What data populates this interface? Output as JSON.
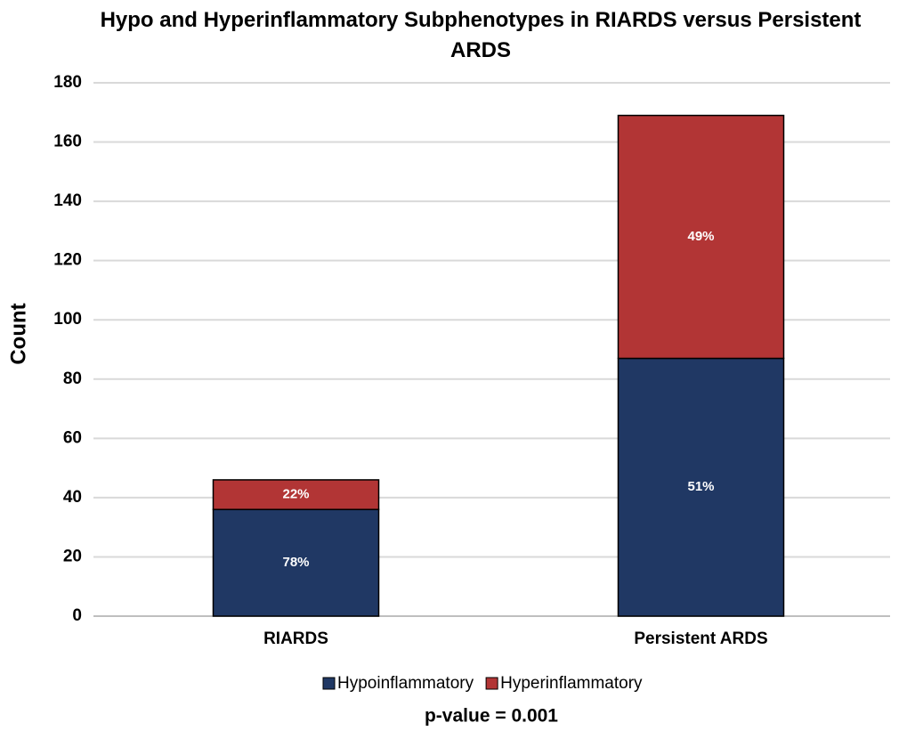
{
  "chart_data": {
    "type": "stacked_bar",
    "title": "Hypo and Hyperinflammatory Subphenotypes in RIARDS versus Persistent ARDS",
    "y_label": "Count",
    "categories": [
      "RIARDS",
      "Persistent ARDS"
    ],
    "series": [
      {
        "name": "Hypoinflammatory",
        "color": "#203864",
        "values": [
          36,
          87
        ],
        "labels": [
          "78%",
          "51%"
        ]
      },
      {
        "name": "Hyperinflammatory",
        "color": "#b23535",
        "values": [
          10,
          82
        ],
        "labels": [
          "22%",
          "49%"
        ]
      }
    ],
    "ylim": [
      0,
      180
    ],
    "yticks": [
      0,
      20,
      40,
      60,
      80,
      100,
      120,
      140,
      160,
      180
    ],
    "grid": true,
    "legend": "bottom",
    "footnote": "p-value = 0.001"
  }
}
